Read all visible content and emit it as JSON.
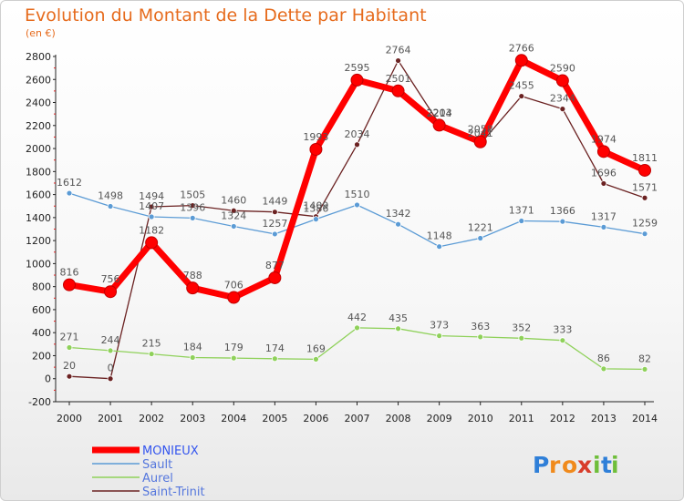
{
  "chart_data": {
    "type": "line",
    "title": "Evolution du Montant de la Dette par Habitant",
    "subtitle": "(en €)",
    "x": [
      "2000",
      "2001",
      "2002",
      "2003",
      "2004",
      "2005",
      "2006",
      "2007",
      "2008",
      "2009",
      "2010",
      "2011",
      "2012",
      "2013",
      "2014"
    ],
    "ylim": [
      -200,
      2800
    ],
    "yticks": [
      -200,
      0,
      200,
      400,
      600,
      800,
      1000,
      1200,
      1400,
      1600,
      1800,
      2000,
      2200,
      2400,
      2600,
      2800
    ],
    "grid": false,
    "legend_position": "bottom-left",
    "series": [
      {
        "name": "MONIEUX",
        "color": "#ff0000",
        "values": [
          816,
          756,
          1182,
          788,
          706,
          877,
          1993,
          2595,
          2501,
          2203,
          2058,
          2766,
          2590,
          1974,
          1811
        ]
      },
      {
        "name": "Sault",
        "color": "#5b9bd5",
        "values": [
          1612,
          1498,
          1407,
          1396,
          1324,
          1257,
          1386,
          1510,
          1342,
          1148,
          1221,
          1371,
          1366,
          1317,
          1259
        ]
      },
      {
        "name": "Aurel",
        "color": "#8fd15a",
        "values": [
          271,
          244,
          215,
          184,
          179,
          174,
          169,
          442,
          435,
          373,
          363,
          352,
          333,
          86,
          82
        ]
      },
      {
        "name": "Saint-Trinit",
        "color": "#6b2222",
        "values": [
          20,
          0,
          1494,
          1505,
          1460,
          1449,
          1409,
          2034,
          2764,
          2214,
          2041,
          2455,
          2344,
          1696,
          1571
        ]
      }
    ]
  },
  "logo": {
    "text": "Proxiti",
    "letters": [
      "P",
      "r",
      "o",
      "x",
      "i",
      "t",
      "i"
    ]
  }
}
